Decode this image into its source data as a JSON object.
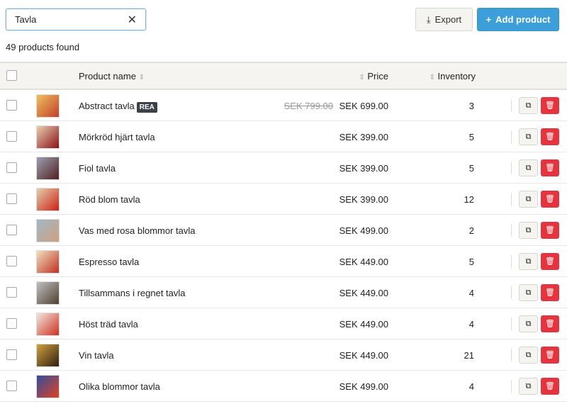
{
  "search": {
    "value": "Tavla"
  },
  "toolbar": {
    "export_label": "Export",
    "add_label": "Add product"
  },
  "results_count": "49 products found",
  "columns": {
    "name": "Product name",
    "price": "Price",
    "inventory": "Inventory"
  },
  "sort_icon": "⇕",
  "rows": [
    {
      "name": "Abstract tavla",
      "badge": "REA",
      "old_price": "SEK 799.00",
      "price": "SEK 699.00",
      "inventory": "3",
      "thumb": [
        "#f0c060",
        "#c0402a"
      ]
    },
    {
      "name": "Mörkröd hjärt tavla",
      "badge": "",
      "old_price": "",
      "price": "SEK 399.00",
      "inventory": "5",
      "thumb": [
        "#e8d0b0",
        "#8a1015"
      ]
    },
    {
      "name": "Fiol tavla",
      "badge": "",
      "old_price": "",
      "price": "SEK 399.00",
      "inventory": "5",
      "thumb": [
        "#9aa0b0",
        "#502020"
      ]
    },
    {
      "name": "Röd blom tavla",
      "badge": "",
      "old_price": "",
      "price": "SEK 399.00",
      "inventory": "12",
      "thumb": [
        "#e0d0b0",
        "#d02010"
      ]
    },
    {
      "name": "Vas med rosa blommor tavla",
      "badge": "",
      "old_price": "",
      "price": "SEK 499.00",
      "inventory": "2",
      "thumb": [
        "#a0b8c8",
        "#d0a080"
      ]
    },
    {
      "name": "Espresso tavla",
      "badge": "",
      "old_price": "",
      "price": "SEK 449.00",
      "inventory": "5",
      "thumb": [
        "#f0e0c0",
        "#c03020"
      ]
    },
    {
      "name": "Tillsammans i regnet tavla",
      "badge": "",
      "old_price": "",
      "price": "SEK 449.00",
      "inventory": "4",
      "thumb": [
        "#c0c0c0",
        "#504030"
      ]
    },
    {
      "name": "Höst träd tavla",
      "badge": "",
      "old_price": "",
      "price": "SEK 449.00",
      "inventory": "4",
      "thumb": [
        "#f0e8e0",
        "#d03020"
      ]
    },
    {
      "name": "Vin tavla",
      "badge": "",
      "old_price": "",
      "price": "SEK 449.00",
      "inventory": "21",
      "thumb": [
        "#d0a040",
        "#302010"
      ]
    },
    {
      "name": "Olika blommor tavla",
      "badge": "",
      "old_price": "",
      "price": "SEK 499.00",
      "inventory": "4",
      "thumb": [
        "#3050a0",
        "#e04020"
      ]
    }
  ]
}
